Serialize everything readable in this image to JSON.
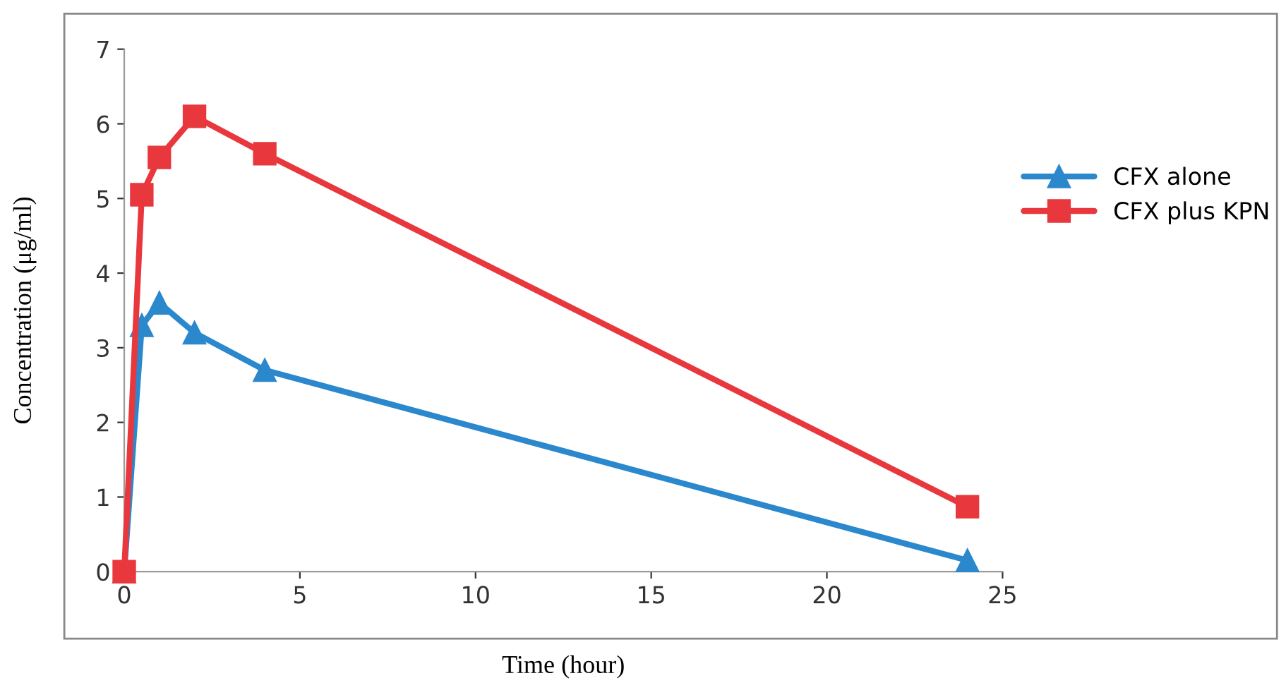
{
  "chart_data": {
    "type": "line",
    "xlabel": "Time (hour)",
    "ylabel": "Concentration (μg/ml)",
    "x": [
      0,
      0.5,
      1,
      2,
      4,
      24
    ],
    "series": [
      {
        "name": "CFX alone",
        "color": "#2b88cc",
        "marker": "triangle",
        "values": [
          0,
          3.3,
          3.6,
          3.2,
          2.7,
          0.15
        ]
      },
      {
        "name": "CFX plus KPN",
        "color": "#e8383d",
        "marker": "square",
        "values": [
          0,
          5.05,
          5.55,
          6.1,
          5.6,
          0.87
        ]
      }
    ],
    "xlim": [
      0,
      25
    ],
    "xticks": [
      0,
      5,
      10,
      15,
      20,
      25
    ],
    "ylim": [
      0,
      7
    ],
    "yticks": [
      0,
      1,
      2,
      3,
      4,
      5,
      6,
      7
    ],
    "grid": false,
    "legend": "right",
    "line_style": "solid"
  }
}
